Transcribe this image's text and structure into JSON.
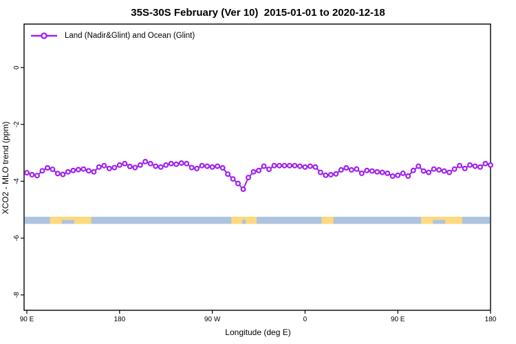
{
  "title": "35S-30S February (Ver 10)  2015-01-01 to 2020-12-18",
  "legend": {
    "label": "Land (Nadir&Glint) and Ocean (Glint)",
    "marker": "open-circle-line"
  },
  "x_axis": {
    "label": "Longitude (deg E)"
  },
  "y_axis": {
    "label": "XCO2 - MLO trend (ppm)"
  },
  "colors": {
    "series": "#A020F0",
    "ocean": "#AEC3DE",
    "land": "#FED97E",
    "axis": "#000000",
    "background": "#FFFFFF"
  },
  "chart_data": {
    "type": "line",
    "title": "35S-30S February (Ver 10)  2015-01-01 to 2020-12-18",
    "xlabel": "Longitude (deg E)",
    "ylabel": "XCO2 - MLO trend (ppm)",
    "xlim": [
      87.33,
      540
    ],
    "ylim": [
      -8.54,
      1.53
    ],
    "grid": false,
    "legend_position": "top-left",
    "x_ticks": {
      "values": [
        90,
        180,
        270,
        360,
        450,
        540
      ],
      "labels": [
        "90 E",
        "180",
        "90 W",
        "0",
        "90 E",
        "180"
      ]
    },
    "y_ticks": {
      "values": [
        0,
        -2,
        -4,
        -6,
        -8
      ],
      "labels": [
        "0",
        "-2",
        "-4",
        "-6",
        "-8"
      ]
    },
    "series": [
      {
        "name": "Land (Nadir&Glint) and Ocean (Glint)",
        "color": "#A020F0",
        "marker": "open-circle",
        "x_start": 90,
        "x_step": 5,
        "values": [
          -3.7,
          -3.77,
          -3.8,
          -3.63,
          -3.53,
          -3.58,
          -3.73,
          -3.76,
          -3.67,
          -3.62,
          -3.59,
          -3.57,
          -3.63,
          -3.67,
          -3.5,
          -3.45,
          -3.55,
          -3.52,
          -3.43,
          -3.38,
          -3.48,
          -3.52,
          -3.43,
          -3.31,
          -3.38,
          -3.47,
          -3.5,
          -3.43,
          -3.38,
          -3.4,
          -3.36,
          -3.38,
          -3.52,
          -3.55,
          -3.45,
          -3.47,
          -3.5,
          -3.47,
          -3.53,
          -3.75,
          -3.92,
          -4.08,
          -4.28,
          -3.87,
          -3.67,
          -3.62,
          -3.47,
          -3.58,
          -3.45,
          -3.45,
          -3.45,
          -3.45,
          -3.45,
          -3.47,
          -3.5,
          -3.47,
          -3.5,
          -3.69,
          -3.79,
          -3.77,
          -3.74,
          -3.6,
          -3.53,
          -3.6,
          -3.57,
          -3.72,
          -3.62,
          -3.64,
          -3.67,
          -3.69,
          -3.72,
          -3.82,
          -3.79,
          -3.72,
          -3.82,
          -3.62,
          -3.47,
          -3.64,
          -3.69,
          -3.57,
          -3.6,
          -3.64,
          -3.69,
          -3.57,
          -3.45,
          -3.55,
          -3.43,
          -3.47,
          -3.5,
          -3.38,
          -3.43
        ]
      }
    ],
    "map_strip": {
      "description": "land-ocean strip for the 35S-30S latitude band",
      "y_range": [
        -5.5,
        -5.25
      ],
      "ocean_color": "#AEC3DE",
      "land_color": "#FED97E",
      "land_segments": [
        [
          112.5,
          152.5
        ],
        [
          288.5,
          313.0
        ],
        [
          376.0,
          387.5
        ],
        [
          472.5,
          512.5
        ]
      ],
      "ocean_notches": [
        {
          "range": [
            124.0,
            136.0
          ],
          "depth_frac": 0.55
        },
        {
          "range": [
            299.0,
            302.5
          ],
          "depth_frac": 0.6
        },
        {
          "range": [
            484.0,
            496.0
          ],
          "depth_frac": 0.55
        }
      ]
    }
  }
}
